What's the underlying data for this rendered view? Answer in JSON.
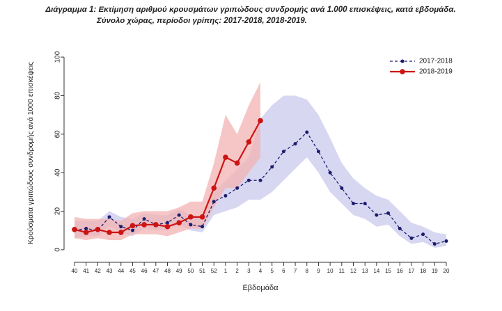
{
  "chart_data": {
    "type": "line",
    "title": "Διάγραμμα 1: Εκτίμηση αριθμού κρουσμάτων γριπώδους συνδρομής ανά 1.000 επισκέψεις, κατά εβδομάδα.",
    "subtitle": "Σύνολο χώρας, περίοδοι γρίπης:  2017-2018, 2018-2019.",
    "x_label": "Εβδομάδα",
    "y_label": "Κρούσματα γριπώδους συνδρομής ανά 1000 επισκέψεις",
    "categories": [
      "40",
      "41",
      "42",
      "43",
      "44",
      "45",
      "46",
      "47",
      "48",
      "49",
      "50",
      "51",
      "52",
      "1",
      "2",
      "3",
      "4",
      "5",
      "6",
      "7",
      "8",
      "9",
      "10",
      "11",
      "12",
      "13",
      "14",
      "15",
      "16",
      "17",
      "18",
      "19",
      "20"
    ],
    "series": [
      {
        "name": "2017-2018",
        "color": "#1c1c6e",
        "band_color": "#c9c9ee",
        "linestyle": "dashed",
        "values": [
          10,
          11,
          10,
          17,
          12,
          10,
          16,
          13,
          14,
          18,
          13,
          12,
          25,
          28,
          32,
          36,
          36,
          43,
          51,
          55,
          61,
          51,
          40,
          32,
          24,
          24,
          18,
          19,
          11,
          6,
          8,
          3,
          4.5
        ],
        "upper": [
          15,
          15,
          15,
          20,
          17,
          16,
          19,
          18,
          18,
          21,
          18,
          16,
          30,
          36,
          42,
          48,
          68,
          75,
          80,
          80,
          78,
          70,
          58,
          45,
          37,
          32,
          28,
          26,
          20,
          14,
          12,
          9,
          8
        ],
        "lower": [
          6,
          7,
          7,
          12,
          9,
          7,
          11,
          10,
          10,
          13,
          10,
          9,
          18,
          20,
          22,
          26,
          26,
          30,
          36,
          42,
          48,
          40,
          30,
          24,
          18,
          16,
          12,
          13,
          7,
          3,
          4,
          1,
          2
        ]
      },
      {
        "name": "2018-2019",
        "color": "#cc1414",
        "band_color": "#f3b3b3",
        "linestyle": "solid",
        "values": [
          10.5,
          9,
          10.5,
          9,
          9,
          12.5,
          13,
          13,
          12,
          14,
          17,
          17,
          32,
          48,
          45,
          56,
          67,
          null,
          null,
          null,
          null,
          null,
          null,
          null,
          null,
          null,
          null,
          null,
          null,
          null,
          null,
          null,
          null
        ],
        "upper": [
          17,
          16,
          16,
          16,
          15,
          19,
          20,
          20,
          20,
          22,
          25,
          25,
          45,
          70,
          60,
          75,
          87,
          null,
          null,
          null,
          null,
          null,
          null,
          null,
          null,
          null,
          null,
          null,
          null,
          null,
          null,
          null,
          null
        ],
        "lower": [
          6,
          5,
          6,
          5,
          5,
          8,
          8,
          8,
          7,
          9,
          11,
          11,
          22,
          32,
          32,
          40,
          48,
          null,
          null,
          null,
          null,
          null,
          null,
          null,
          null,
          null,
          null,
          null,
          null,
          null,
          null,
          null,
          null
        ]
      }
    ],
    "ylim": [
      -4,
      104
    ],
    "yticks": [
      0,
      20,
      40,
      60,
      80,
      100
    ],
    "legend": "top-right"
  }
}
